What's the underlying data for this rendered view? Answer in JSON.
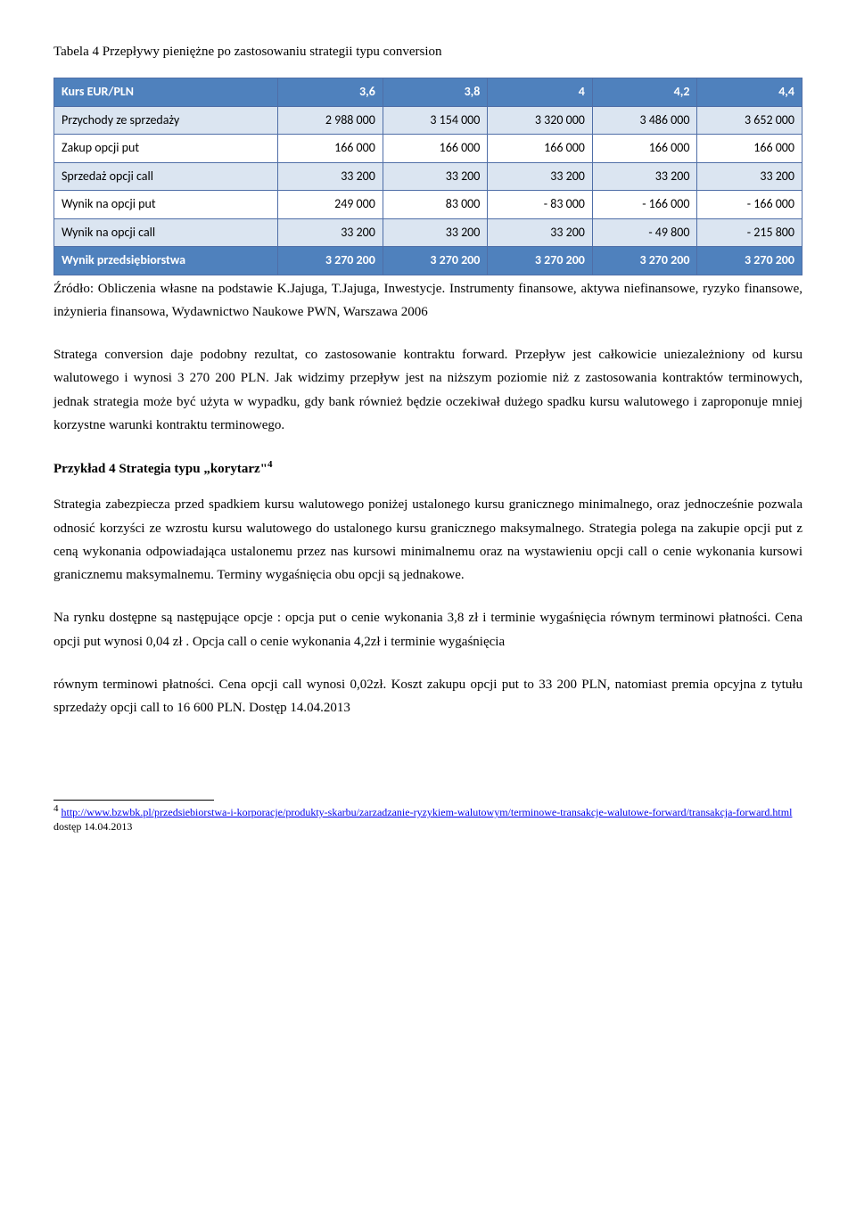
{
  "caption": "Tabela 4 Przepływy pieniężne po zastosowaniu strategii typu conversion",
  "table": {
    "header": [
      "Kurs EUR/PLN",
      "3,6",
      "3,8",
      "4",
      "4,2",
      "4,4"
    ],
    "rows": [
      {
        "alt": true,
        "cells": [
          "Przychody ze sprzedaży",
          "2 988 000",
          "3 154 000",
          "3 320 000",
          "3 486 000",
          "3 652 000"
        ]
      },
      {
        "alt": false,
        "cells": [
          "Zakup opcji put",
          "166 000",
          "166 000",
          "166 000",
          "166 000",
          "166 000"
        ]
      },
      {
        "alt": true,
        "cells": [
          "Sprzedaż opcji call",
          "33 200",
          "33 200",
          "33 200",
          "33 200",
          "33 200"
        ]
      },
      {
        "alt": false,
        "cells": [
          "Wynik na opcji put",
          "249 000",
          "83 000",
          "-      83 000",
          "-    166 000",
          "-    166 000"
        ]
      },
      {
        "alt": true,
        "cells": [
          "Wynik na opcji call",
          "33 200",
          "33 200",
          "33 200",
          "-      49 800",
          "-    215 800"
        ]
      }
    ],
    "finalRow": [
      "Wynik przedsiębiorstwa",
      "3 270 200",
      "3 270 200",
      "3 270 200",
      "3 270 200",
      "3 270 200"
    ]
  },
  "source": "Źródło: Obliczenia własne na podstawie K.Jajuga, T.Jajuga, Inwestycje. Instrumenty finansowe, aktywa niefinansowe, ryzyko finansowe, inżynieria finansowa, Wydawnictwo Naukowe PWN, Warszawa 2006",
  "para1": "Stratega conversion daje podobny rezultat, co zastosowanie kontraktu forward. Przepływ jest całkowicie uniezależniony od kursu walutowego i wynosi 3 270 200 PLN. Jak widzimy przepływ jest na niższym poziomie niż z zastosowania kontraktów terminowych, jednak strategia może być użyta w wypadku, gdy bank również będzie oczekiwał dużego spadku kursu walutowego i zaproponuje mniej korzystne warunki kontraktu terminowego.",
  "heading4_pre": "Przykład 4 Strategia typu „korytarz\"",
  "heading4_sup": "4",
  "para2": "Strategia zabezpiecza przed spadkiem kursu walutowego poniżej ustalonego kursu granicznego minimalnego, oraz jednocześnie pozwala odnosić korzyści ze wzrostu kursu walutowego do ustalonego kursu granicznego maksymalnego. Strategia polega na zakupie opcji put z ceną wykonania odpowiadająca ustalonemu przez nas kursowi minimalnemu oraz na wystawieniu opcji call o cenie wykonania kursowi granicznemu maksymalnemu. Terminy wygaśnięcia obu opcji są jednakowe.",
  "para3": "Na rynku dostępne są następujące opcje : opcja put o cenie wykonania 3,8 zł i terminie wygaśnięcia równym terminowi płatności. Cena opcji put wynosi 0,04 zł . Opcja call o cenie wykonania 4,2zł i terminie wygaśnięcia",
  "para4": " równym terminowi płatności. Cena opcji call wynosi 0,02zł. Koszt zakupu opcji put to 33 200 PLN, natomiast premia opcyjna z tytułu sprzedaży opcji call to 16 600 PLN. Dostęp 14.04.2013",
  "footnote": {
    "num": "4",
    "url": "http://www.bzwbk.pl/przedsiebiorstwa-i-korporacje/produkty-skarbu/zarzadzanie-ryzykiem-walutowym/terminowe-transakcje-walutowe-forward/transakcja-forward.html",
    "tail": " dostęp 14.04.2013"
  }
}
